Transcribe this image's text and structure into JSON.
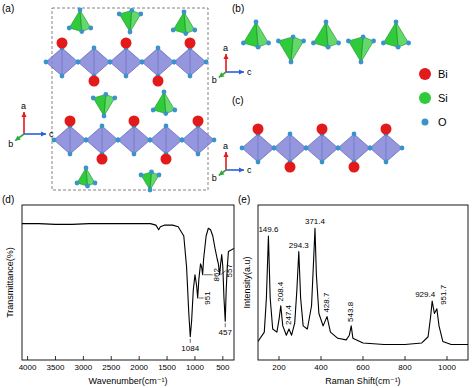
{
  "structure": {
    "panels": [
      {
        "label": "(a)"
      },
      {
        "label": "(b)"
      },
      {
        "label": "(c)"
      }
    ],
    "axis_labels": [
      "a",
      "b",
      "c"
    ],
    "legend": [
      {
        "label": "Bi",
        "color": "#e31a1c"
      },
      {
        "label": "Si",
        "color": "#2fcb3a"
      },
      {
        "label": "O",
        "color": "#3a93c9"
      }
    ]
  },
  "chart_data": [
    {
      "type": "line",
      "title": "(d)",
      "x_label": "Wavenumber(cm⁻¹)",
      "y_label": "Transmittance(%)",
      "x": [
        4100,
        3800,
        3500,
        3200,
        2900,
        2600,
        2300,
        2000,
        1800,
        1700,
        1650,
        1620,
        1550,
        1400,
        1300,
        1200,
        1150,
        1110,
        1084,
        1060,
        1030,
        1000,
        970,
        951,
        930,
        900,
        880,
        862,
        845,
        800,
        760,
        720,
        680,
        640,
        600,
        580,
        557,
        540,
        520,
        500,
        480,
        457,
        440,
        420,
        400,
        300
      ],
      "values": [
        88,
        88,
        87.5,
        87.5,
        88,
        88,
        88,
        88,
        88,
        87,
        84,
        86,
        87,
        87,
        86,
        80,
        60,
        30,
        15,
        25,
        45,
        55,
        48,
        40,
        52,
        62,
        60,
        55,
        65,
        80,
        85,
        84,
        80,
        72,
        65,
        62,
        55,
        62,
        68,
        60,
        40,
        25,
        45,
        60,
        70,
        72
      ],
      "color": "#000000",
      "xlim": [
        4100,
        300
      ],
      "xticks": [
        4000,
        3500,
        3000,
        2500,
        2000,
        1500,
        1000,
        500
      ],
      "ylim": [
        0,
        100
      ],
      "tick_labels": "x",
      "annotations": [
        {
          "x": 1084,
          "text": "1084"
        },
        {
          "x": 951,
          "text": "951"
        },
        {
          "x": 862,
          "text": "862"
        },
        {
          "x": 557,
          "text": "557"
        },
        {
          "x": 457,
          "text": "457"
        }
      ]
    },
    {
      "type": "line",
      "title": "(e)",
      "x_label": "Raman Shift(cm⁻¹)",
      "y_label": "Intensity(a.u)",
      "x": [
        100,
        130,
        140,
        149.6,
        158,
        170,
        190,
        200,
        208.4,
        218,
        235,
        247.4,
        260,
        275,
        285,
        294.3,
        303,
        315,
        335,
        355,
        365,
        371.4,
        378,
        390,
        410,
        428.7,
        445,
        480,
        520,
        535,
        543.8,
        552,
        600,
        700,
        800,
        880,
        910,
        922,
        929.4,
        940,
        951.7,
        962,
        980,
        1020,
        1060,
        1100
      ],
      "values": [
        12,
        18,
        40,
        80,
        40,
        20,
        18,
        26,
        35,
        22,
        16,
        20,
        16,
        24,
        45,
        70,
        40,
        22,
        20,
        35,
        65,
        85,
        55,
        30,
        22,
        28,
        18,
        14,
        13,
        16,
        22,
        14,
        11,
        10,
        10,
        11,
        15,
        28,
        38,
        30,
        33,
        22,
        12,
        10,
        10,
        10
      ],
      "color": "#000000",
      "xlim": [
        100,
        1100
      ],
      "xticks": [
        200,
        400,
        600,
        800,
        1000
      ],
      "ylim": [
        0,
        100
      ],
      "tick_labels": "x",
      "annotations": [
        {
          "x": 149.6,
          "text": "149.6"
        },
        {
          "x": 208.4,
          "text": "208.4"
        },
        {
          "x": 247.4,
          "text": "247.4"
        },
        {
          "x": 294.3,
          "text": "294.3"
        },
        {
          "x": 371.4,
          "text": "371.4"
        },
        {
          "x": 428.7,
          "text": "428.7"
        },
        {
          "x": 543.8,
          "text": "543.8"
        },
        {
          "x": 929.4,
          "text": "929.4"
        },
        {
          "x": 951.7,
          "text": "951.7"
        }
      ]
    }
  ]
}
